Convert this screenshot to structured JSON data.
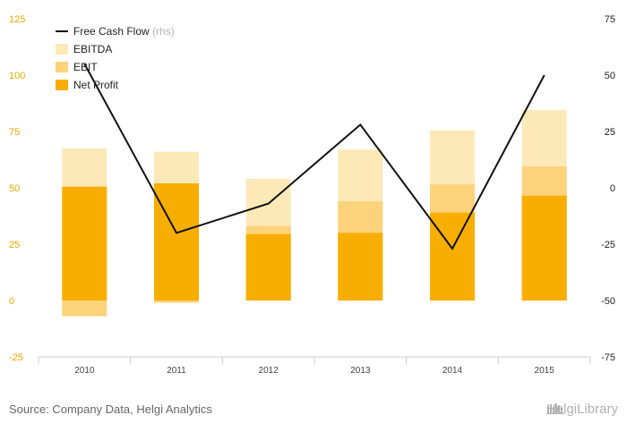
{
  "chart_data": {
    "type": "bar",
    "categories": [
      "2010",
      "2011",
      "2012",
      "2013",
      "2014",
      "2015"
    ],
    "series": [
      {
        "name": "EBITDA",
        "values": [
          67.5,
          66,
          54,
          67,
          75.5,
          84.5
        ],
        "color": "#fde9b8",
        "kind": "bar"
      },
      {
        "name": "EBIT",
        "values": [
          -7,
          -1,
          33,
          44,
          51.5,
          59.5
        ],
        "color": "#fcd27b",
        "kind": "bar"
      },
      {
        "name": "Net Profit",
        "values": [
          50.5,
          52,
          29.5,
          30,
          39,
          46.5
        ],
        "color": "#f8ae00",
        "kind": "bar"
      },
      {
        "name": "Free Cash Flow",
        "suffix": "(rhs)",
        "values": [
          55,
          -20,
          -7,
          28,
          -27,
          50
        ],
        "color": "#111111",
        "kind": "line",
        "axis": "right"
      }
    ],
    "ylim_left": [
      -25,
      125
    ],
    "ylim_right": [
      -75,
      75
    ],
    "yticks_left": [
      -25,
      0,
      25,
      50,
      75,
      100,
      125
    ],
    "yticks_right": [
      -75,
      -50,
      -25,
      0,
      25,
      50,
      75
    ],
    "legend_position": "top-left",
    "grid": false
  },
  "footer": {
    "source": "Source: Company Data, Helgi Analytics",
    "brand": "HelgiLibrary"
  }
}
